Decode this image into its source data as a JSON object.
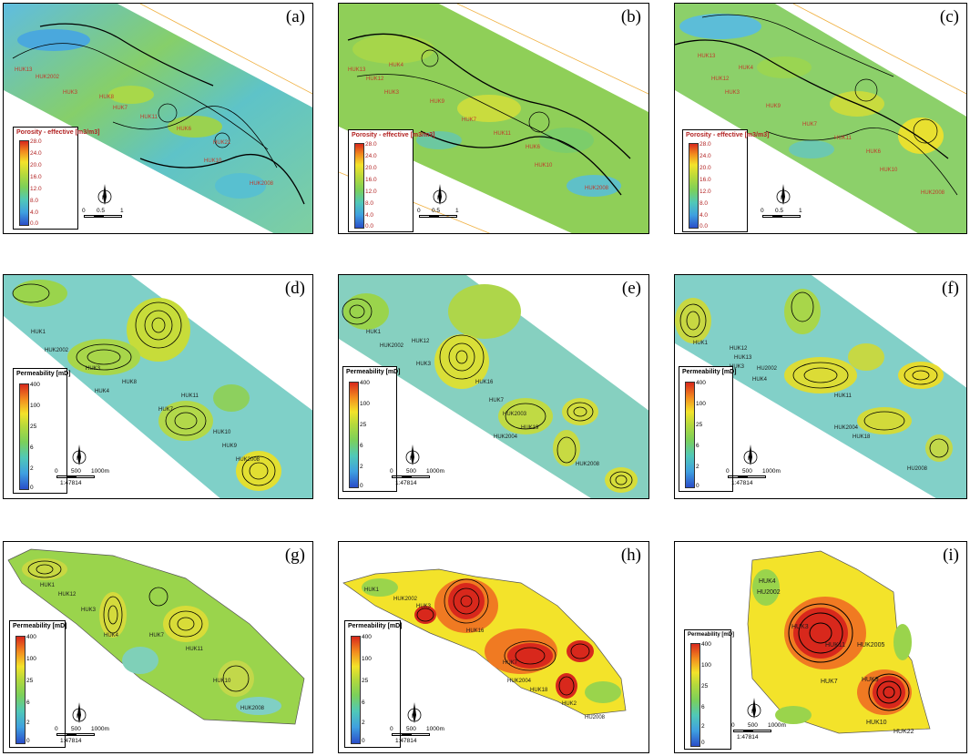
{
  "panels": [
    {
      "id": "a",
      "label": "(a)",
      "kind": "porosity"
    },
    {
      "id": "b",
      "label": "(b)",
      "kind": "porosity"
    },
    {
      "id": "c",
      "label": "(c)",
      "kind": "porosity"
    },
    {
      "id": "d",
      "label": "(d)",
      "kind": "permeability"
    },
    {
      "id": "e",
      "label": "(e)",
      "kind": "permeability"
    },
    {
      "id": "f",
      "label": "(f)",
      "kind": "permeability"
    },
    {
      "id": "g",
      "label": "(g)",
      "kind": "permeability"
    },
    {
      "id": "h",
      "label": "(h)",
      "kind": "permeability"
    },
    {
      "id": "i",
      "label": "(i)",
      "kind": "permeability"
    }
  ],
  "porosity_legend": {
    "title": "Porosity - effective [m3/m3]",
    "ticks": [
      "28.0",
      "24.0",
      "20.0",
      "16.0",
      "12.0",
      "8.0",
      "4.0",
      "0.0"
    ]
  },
  "permeability_legend": {
    "title": "Permeability [mD]",
    "ticks": [
      "400",
      "100",
      "25",
      "6",
      "2",
      "0"
    ]
  },
  "scale_porosity": {
    "labels": [
      "0",
      "0.5",
      "1"
    ]
  },
  "scale_permeability": {
    "labels": [
      "0",
      "500",
      "1000m"
    ],
    "ratio": "1:47814"
  },
  "wells": {
    "a": [
      "HUK13",
      "HUK2002",
      "HUK3",
      "HUK8",
      "HUK7",
      "HUK11",
      "HUK6",
      "HUK21",
      "HUK10",
      "HUK2008"
    ],
    "b": [
      "HUK13",
      "HUK4",
      "HUK12",
      "HUK3",
      "HUK9",
      "HUK7",
      "HUK11",
      "HUK6",
      "HUK10",
      "HUK2008"
    ],
    "c": [
      "HUK13",
      "HUK4",
      "HUK12",
      "HUK3",
      "HUK9",
      "HUK7",
      "HUK11",
      "HUK6",
      "HUK10",
      "HUK2008"
    ],
    "d": [
      "HUK1",
      "HUK2002",
      "HUK3",
      "HUK8",
      "HUK4",
      "HUK7",
      "HUK11",
      "HUK10",
      "HUK9",
      "HUK2008"
    ],
    "e": [
      "HUK1",
      "HUK2002",
      "HUK12",
      "HUK3",
      "HUK16",
      "HUK7",
      "HUK2003",
      "HUK19",
      "HUK2004",
      "HUK2008"
    ],
    "f": [
      "HUK1",
      "HUK12",
      "HUK13",
      "HUK3",
      "HU2002",
      "HUK4",
      "HUK11",
      "HUK18",
      "HUK2004",
      "HU2008"
    ],
    "g": [
      "HUK1",
      "HUK12",
      "HUK3",
      "HUK4",
      "HUK7",
      "HUK11",
      "HUK10",
      "HUK2008"
    ],
    "h": [
      "HUK1",
      "HUK2002",
      "HUK16",
      "HUK3",
      "HUK7",
      "HUK2004",
      "HUK18",
      "HUK2",
      "HU2008"
    ],
    "i": [
      "HUK4",
      "HU2002",
      "HUK3",
      "HUK11",
      "HUK2005",
      "HUK7",
      "HUK10",
      "HUK22",
      "HUK9"
    ]
  },
  "colors": {
    "low": "#3fa0e0",
    "mid": "#7bd05a",
    "high": "#f3e32a",
    "max": "#d8281c",
    "contour": "#000000",
    "well_label": "#c0392b"
  }
}
